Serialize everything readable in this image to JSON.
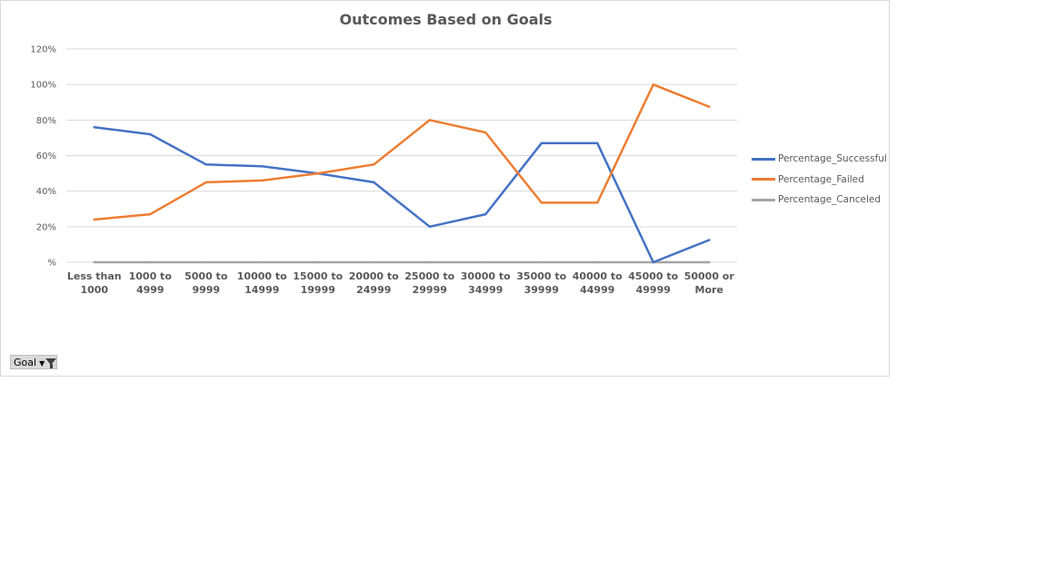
{
  "chart_data": {
    "type": "line",
    "title": "Outcomes Based on Goals",
    "categories": [
      [
        "Less than",
        "1000"
      ],
      [
        "1000 to",
        "4999"
      ],
      [
        "5000 to",
        "9999"
      ],
      [
        "10000 to",
        "14999"
      ],
      [
        "15000 to",
        "19999"
      ],
      [
        "20000 to",
        "24999"
      ],
      [
        "25000 to",
        "29999"
      ],
      [
        "30000 to",
        "34999"
      ],
      [
        "35000 to",
        "39999"
      ],
      [
        "40000 to",
        "44999"
      ],
      [
        "45000 to",
        "49999"
      ],
      [
        "50000 or",
        "More"
      ]
    ],
    "y_ticks": [
      "%",
      "20%",
      "40%",
      "60%",
      "80%",
      "100%",
      "120%"
    ],
    "ylim": [
      0,
      120
    ],
    "grid": true,
    "legend_position": "right",
    "series": [
      {
        "name": "Percentage_Successful",
        "color": "#4472c4",
        "values": [
          76,
          72,
          55,
          54,
          50,
          45,
          20,
          27,
          67,
          67,
          0,
          12.5
        ]
      },
      {
        "name": "Percentage_Failed",
        "color": "#ed7d31",
        "values": [
          24,
          27,
          45,
          46,
          50,
          55,
          80,
          73,
          33.5,
          33.5,
          100,
          87.5
        ]
      },
      {
        "name": "Percentage_Canceled",
        "color": "#a5a5a5",
        "values": [
          0,
          0,
          0,
          0,
          0,
          0,
          0,
          0,
          0,
          0,
          0,
          0
        ]
      }
    ]
  },
  "filter_button": {
    "label": "Goal"
  }
}
